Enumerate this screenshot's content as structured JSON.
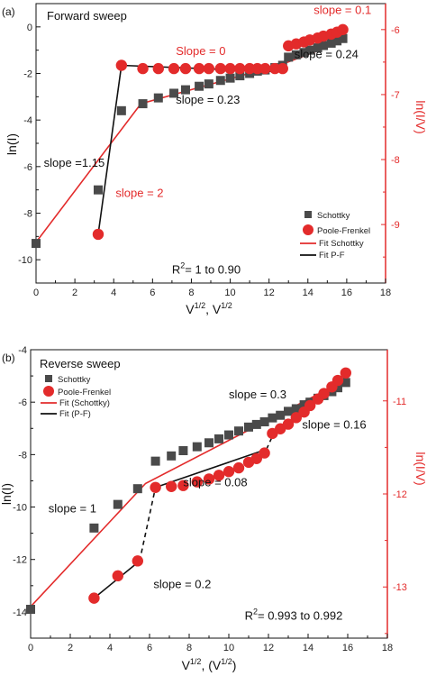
{
  "chart_data": [
    {
      "type": "scatter",
      "panel_label": "(a)",
      "title": "Forward sweep",
      "xlabel": "V1/2, V1/2",
      "ylabel": "ln(I)",
      "ylabel_right": "ln(I/V)",
      "xlim": [
        0,
        18
      ],
      "ylim": [
        -11,
        1
      ],
      "ylim_right": [
        -9.9,
        -5.6
      ],
      "xticks": [
        "0",
        "2",
        "4",
        "6",
        "8",
        "10",
        "12",
        "14",
        "16",
        "18"
      ],
      "yticks": [
        "0",
        "-2",
        "-4",
        "-6",
        "-8",
        "-10"
      ],
      "yticks_right": [
        "-6",
        "-7",
        "-8",
        "-9"
      ],
      "legend_position": "bottom-right",
      "legend": [
        "Schottky",
        "Poole-Frenkel",
        "Fit Schottky",
        "Fit P-F"
      ],
      "series": [
        {
          "name": "Schottky",
          "axis": "left",
          "marker": "square",
          "color": "#4a4a4a",
          "x": [
            0,
            3.2,
            4.4,
            5.5,
            6.3,
            7.1,
            7.7,
            8.4,
            8.9,
            9.5,
            10.0,
            10.5,
            11.0,
            11.4,
            11.8,
            12.3,
            12.7,
            13.0,
            13.4,
            13.8,
            14.1,
            14.5,
            14.8,
            15.2,
            15.5,
            15.8
          ],
          "y": [
            -9.3,
            -7.0,
            -3.6,
            -3.3,
            -3.05,
            -2.85,
            -2.7,
            -2.55,
            -2.45,
            -2.3,
            -2.2,
            -2.1,
            -2.0,
            -1.9,
            -1.85,
            -1.75,
            -1.65,
            -1.3,
            -1.2,
            -1.1,
            -1.0,
            -0.9,
            -0.8,
            -0.7,
            -0.6,
            -0.5
          ]
        },
        {
          "name": "Poole-Frenkel",
          "axis": "right",
          "marker": "circle",
          "color": "#e32b2b",
          "x": [
            3.2,
            4.4,
            5.5,
            6.3,
            7.1,
            7.7,
            8.4,
            8.9,
            9.5,
            10.0,
            10.5,
            11.0,
            11.4,
            11.8,
            12.3,
            12.7,
            13.0,
            13.4,
            13.8,
            14.1,
            14.5,
            14.8,
            15.2,
            15.5,
            15.8
          ],
          "y": [
            -9.15,
            -6.55,
            -6.6,
            -6.6,
            -6.6,
            -6.6,
            -6.6,
            -6.6,
            -6.6,
            -6.6,
            -6.6,
            -6.6,
            -6.6,
            -6.6,
            -6.6,
            -6.6,
            -6.25,
            -6.22,
            -6.19,
            -6.16,
            -6.13,
            -6.1,
            -6.07,
            -6.04,
            -6.0
          ]
        },
        {
          "name": "Fit Schottky",
          "axis": "left",
          "type": "line",
          "color": "#e32b2b",
          "x": [
            0,
            5.4,
            12.7,
            16.0
          ],
          "y": [
            -9.25,
            -3.3,
            -1.6,
            -0.55
          ]
        },
        {
          "name": "Fit P-F",
          "axis": "right",
          "type": "line",
          "color": "#111111",
          "segments": [
            {
              "x": [
                3.2,
                4.4
              ],
              "y": [
                -9.15,
                -6.55
              ]
            },
            {
              "x": [
                4.4,
                12.7
              ],
              "y": [
                -6.55,
                -6.65
              ]
            },
            {
              "x": [
                13.0,
                15.9
              ],
              "y": [
                -6.28,
                -5.98
              ]
            }
          ]
        }
      ],
      "annotations": [
        {
          "text": "slope = 0.1",
          "x": 14.3,
          "y": 0.55,
          "color": "#e32b2b"
        },
        {
          "text": "Slope = 0",
          "x": 7.2,
          "y": -1.2,
          "color": "#e32b2b"
        },
        {
          "text": "slope = 0.24",
          "x": 13.3,
          "y": -1.35,
          "color": "#111111"
        },
        {
          "text": "slope = 0.23",
          "x": 7.2,
          "y": -3.3,
          "color": "#111111"
        },
        {
          "text": "slope =1.15",
          "x": 0.4,
          "y": -6.0,
          "color": "#111111"
        },
        {
          "text": "slope = 2",
          "x": 4.1,
          "y": -7.3,
          "color": "#e32b2b"
        },
        {
          "text": "R2= 1 to 0.90",
          "x": 7.0,
          "y": -10.6,
          "color": "#111111"
        }
      ]
    },
    {
      "type": "scatter",
      "panel_label": "(b)",
      "title": "Reverse sweep",
      "xlabel": "V1/2, (V1/2)",
      "ylabel": "ln(I)",
      "ylabel_right": "ln(I/V)",
      "xlim": [
        0,
        18
      ],
      "ylim": [
        -15,
        -4
      ],
      "ylim_right": [
        -13.55,
        -10.45
      ],
      "xticks": [
        "0",
        "2",
        "4",
        "6",
        "8",
        "10",
        "12",
        "14",
        "16",
        "18"
      ],
      "yticks": [
        "-4",
        "-6",
        "-8",
        "-10",
        "-12",
        "-14"
      ],
      "yticks_right": [
        "-11",
        "-12",
        "-13"
      ],
      "legend_position": "top-left",
      "legend": [
        "Schottky",
        "Poole-Frenkel",
        "Fit (Schottky)",
        "Fit (P-F)"
      ],
      "series": [
        {
          "name": "Schottky",
          "axis": "left",
          "marker": "square",
          "color": "#4a4a4a",
          "x": [
            0,
            3.2,
            4.4,
            5.4,
            6.3,
            7.1,
            7.7,
            8.4,
            9.0,
            9.5,
            10.0,
            10.5,
            11.0,
            11.4,
            11.8,
            12.2,
            12.6,
            13.0,
            13.4,
            13.8,
            14.1,
            14.5,
            14.8,
            15.2,
            15.5,
            15.9
          ],
          "y": [
            -13.9,
            -10.8,
            -9.9,
            -9.3,
            -8.25,
            -8.05,
            -7.85,
            -7.7,
            -7.55,
            -7.4,
            -7.25,
            -7.1,
            -6.95,
            -6.85,
            -6.75,
            -6.6,
            -6.5,
            -6.35,
            -6.25,
            -6.1,
            -6.0,
            -5.85,
            -5.75,
            -5.6,
            -5.45,
            -5.25
          ]
        },
        {
          "name": "Poole-Frenkel",
          "axis": "right",
          "marker": "circle",
          "color": "#e32b2b",
          "x": [
            3.2,
            4.4,
            5.4,
            6.3,
            7.1,
            7.7,
            8.4,
            9.0,
            9.5,
            10.0,
            10.5,
            11.0,
            11.4,
            11.8,
            12.2,
            12.6,
            13.0,
            13.4,
            13.8,
            14.1,
            14.5,
            14.8,
            15.2,
            15.5,
            15.9
          ],
          "y": [
            -13.12,
            -12.88,
            -12.72,
            -11.93,
            -11.92,
            -11.91,
            -11.87,
            -11.84,
            -11.8,
            -11.76,
            -11.72,
            -11.66,
            -11.62,
            -11.56,
            -11.35,
            -11.3,
            -11.25,
            -11.18,
            -11.12,
            -11.05,
            -10.98,
            -10.92,
            -10.85,
            -10.78,
            -10.7
          ]
        },
        {
          "name": "Fit (Schottky)",
          "axis": "left",
          "type": "line",
          "color": "#e32b2b",
          "x": [
            0,
            5.8,
            15.9
          ],
          "y": [
            -13.8,
            -9.1,
            -5.15
          ]
        },
        {
          "name": "Fit (P-F)",
          "axis": "right",
          "type": "line",
          "color": "#111111",
          "segments": [
            {
              "x": [
                3.2,
                5.5
              ],
              "y": [
                -13.12,
                -12.72
              ]
            },
            {
              "x": [
                6.3,
                11.9
              ],
              "y": [
                -11.93,
                -11.52
              ]
            },
            {
              "x": [
                12.2,
                15.9
              ],
              "y": [
                -11.38,
                -10.7
              ]
            }
          ],
          "dashed_segments": [
            {
              "x": [
                5.5,
                6.3
              ],
              "y": [
                -12.72,
                -11.93
              ]
            },
            {
              "x": [
                11.9,
                12.2
              ],
              "y": [
                -11.52,
                -11.38
              ]
            }
          ]
        }
      ],
      "annotations": [
        {
          "text": "slope = 0.3",
          "x": 10.0,
          "y": -5.85,
          "color": "#111111"
        },
        {
          "text": "slope = 0.16",
          "x": 13.7,
          "y": -7.0,
          "color": "#111111"
        },
        {
          "text": "slope = 0.08",
          "x": 7.7,
          "y": -9.2,
          "color": "#111111"
        },
        {
          "text": "slope = 1",
          "x": 0.9,
          "y": -10.2,
          "color": "#111111"
        },
        {
          "text": "slope = 0.2",
          "x": 6.2,
          "y": -13.1,
          "color": "#111111"
        },
        {
          "text": "R2= 0.993 to 0.992",
          "x": 10.8,
          "y": -14.3,
          "color": "#111111"
        }
      ]
    }
  ]
}
